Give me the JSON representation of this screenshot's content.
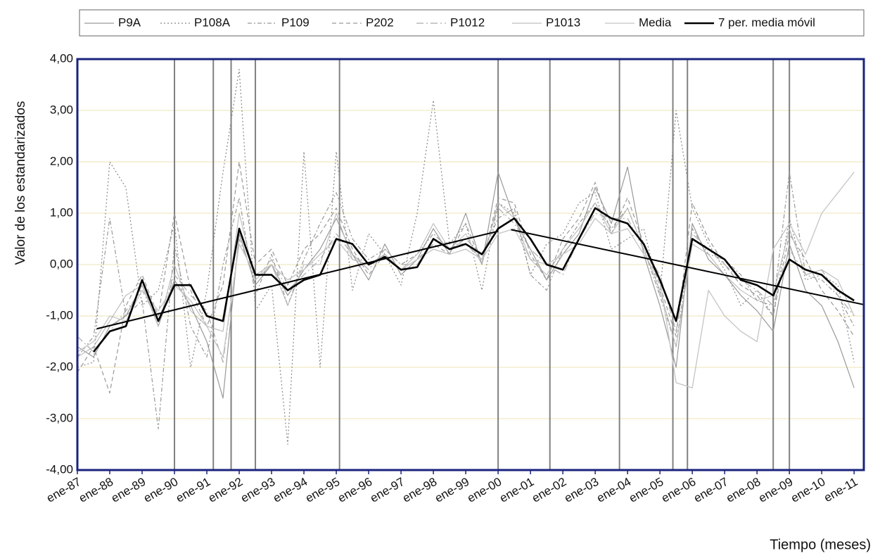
{
  "chart_data": {
    "type": "line",
    "y_label": "Valor de los estandarizados",
    "x_label": "Tiempo  (meses)",
    "x": [
      1987,
      1987.5,
      1988,
      1988.5,
      1989,
      1989.5,
      1990,
      1990.5,
      1991,
      1991.5,
      1992,
      1992.5,
      1993,
      1993.5,
      1994,
      1994.5,
      1995,
      1995.5,
      1996,
      1996.5,
      1997,
      1997.5,
      1998,
      1998.5,
      1999,
      1999.5,
      2000,
      2000.5,
      2001,
      2001.5,
      2002,
      2002.5,
      2003,
      2003.5,
      2004,
      2004.5,
      2005,
      2005.5,
      2006,
      2006.5,
      2007,
      2007.5,
      2008,
      2008.5,
      2009,
      2009.5,
      2010,
      2010.5,
      2011
    ],
    "xlim": [
      1987,
      2011.3
    ],
    "xticks": [
      {
        "value": 1987,
        "label": "ene-87"
      },
      {
        "value": 1988,
        "label": "ene-88"
      },
      {
        "value": 1989,
        "label": "ene-89"
      },
      {
        "value": 1990,
        "label": "ene-90"
      },
      {
        "value": 1991,
        "label": "ene-91"
      },
      {
        "value": 1992,
        "label": "ene-92"
      },
      {
        "value": 1993,
        "label": "ene-93"
      },
      {
        "value": 1994,
        "label": "ene-94"
      },
      {
        "value": 1995,
        "label": "ene-95"
      },
      {
        "value": 1996,
        "label": "ene-96"
      },
      {
        "value": 1997,
        "label": "ene-97"
      },
      {
        "value": 1998,
        "label": "ene-98"
      },
      {
        "value": 1999,
        "label": "ene-99"
      },
      {
        "value": 2000,
        "label": "ene-00"
      },
      {
        "value": 2001,
        "label": "ene-01"
      },
      {
        "value": 2002,
        "label": "ene-02"
      },
      {
        "value": 2003,
        "label": "ene-03"
      },
      {
        "value": 2004,
        "label": "ene-04"
      },
      {
        "value": 2005,
        "label": "ene-05"
      },
      {
        "value": 2006,
        "label": "ene-06"
      },
      {
        "value": 2007,
        "label": "ene-07"
      },
      {
        "value": 2008,
        "label": "ene-08"
      },
      {
        "value": 2009,
        "label": "ene-09"
      },
      {
        "value": 2010,
        "label": "ene-10"
      },
      {
        "value": 2011,
        "label": "ene-11"
      }
    ],
    "ylim": [
      -4,
      4
    ],
    "yticks": [
      {
        "value": -4,
        "label": "-4,00"
      },
      {
        "value": -3,
        "label": "-3,00"
      },
      {
        "value": -2,
        "label": "-2,00"
      },
      {
        "value": -1,
        "label": "-1,00"
      },
      {
        "value": 0,
        "label": "0,00"
      },
      {
        "value": 1,
        "label": "1,00"
      },
      {
        "value": 2,
        "label": "2,00"
      },
      {
        "value": 3,
        "label": "3,00"
      },
      {
        "value": 4,
        "label": "4,00"
      }
    ],
    "grid": true,
    "series": [
      {
        "name": "P9A",
        "color": "#999999",
        "dash": "none",
        "width": 1.2,
        "values": [
          -1.6,
          -1.8,
          -1.2,
          -1.0,
          -0.4,
          -1.2,
          -0.3,
          -0.8,
          -1.5,
          -2.6,
          0.6,
          -0.4,
          0.0,
          -0.6,
          -0.1,
          0.3,
          0.9,
          0.2,
          -0.3,
          0.4,
          -0.2,
          0.1,
          0.7,
          0.2,
          1.0,
          0.0,
          1.8,
          0.9,
          0.3,
          -0.3,
          0.2,
          0.6,
          1.5,
          0.8,
          1.9,
          0.2,
          -0.8,
          -2.0,
          0.8,
          0.1,
          -0.2,
          -0.6,
          -0.9,
          -1.3,
          0.4,
          -0.5,
          -0.8,
          -1.5,
          -2.4
        ]
      },
      {
        "name": "P108A",
        "color": "#888888",
        "dash": "2,3",
        "width": 1.2,
        "values": [
          -2.0,
          -1.9,
          2.0,
          1.5,
          -0.8,
          -0.5,
          0.8,
          -2.0,
          -0.5,
          1.8,
          3.8,
          -0.9,
          -0.4,
          -3.5,
          2.2,
          -2.0,
          2.2,
          -0.5,
          0.6,
          0.2,
          -0.4,
          1.0,
          3.2,
          0.4,
          0.8,
          -0.5,
          1.2,
          1.0,
          -0.2,
          0.4,
          0.6,
          1.2,
          1.4,
          0.3,
          0.5,
          0.7,
          -0.6,
          3.0,
          1.1,
          0.4,
          -0.1,
          -0.8,
          -0.5,
          -1.0,
          0.9,
          -0.3,
          -0.2,
          -0.4,
          -1.9
        ]
      },
      {
        "name": "P109",
        "color": "#999999",
        "dash": "6,3,2,3",
        "width": 1.2,
        "values": [
          -1.8,
          -1.4,
          0.9,
          -1.0,
          -0.7,
          -3.2,
          0.4,
          -1.2,
          -1.8,
          0.0,
          1.3,
          -0.6,
          0.2,
          -0.8,
          0.1,
          0.8,
          1.4,
          0.5,
          0.1,
          0.3,
          0.0,
          0.2,
          0.6,
          0.3,
          0.5,
          0.2,
          0.9,
          1.1,
          -0.2,
          -0.5,
          0.3,
          0.8,
          1.2,
          0.7,
          1.1,
          0.3,
          -0.6,
          -1.6,
          0.7,
          0.2,
          0.1,
          -0.2,
          -0.7,
          -0.8,
          1.8,
          -0.2,
          -0.3,
          -0.6,
          -1.2
        ]
      },
      {
        "name": "P202",
        "color": "#999999",
        "dash": "6,4",
        "width": 1.2,
        "values": [
          -2.1,
          -1.6,
          -2.5,
          -0.8,
          -0.2,
          -1.0,
          1.0,
          -0.5,
          -1.2,
          -0.4,
          2.0,
          0.0,
          0.3,
          -0.4,
          0.3,
          0.6,
          1.1,
          0.3,
          -0.2,
          0.2,
          -0.1,
          0.1,
          0.4,
          0.2,
          0.8,
          0.0,
          1.3,
          1.2,
          0.2,
          -0.3,
          0.5,
          0.9,
          1.6,
          0.6,
          1.3,
          0.4,
          -0.4,
          -1.4,
          1.2,
          0.5,
          0.0,
          -0.4,
          -0.6,
          -1.0,
          0.6,
          0.1,
          -0.5,
          -0.9,
          -1.4
        ]
      },
      {
        "name": "P1012",
        "color": "#aaaaaa",
        "dash": "10,4,2,4",
        "width": 1.2,
        "values": [
          -1.4,
          -1.7,
          -1.3,
          -0.9,
          -0.5,
          -1.1,
          -0.2,
          -0.6,
          -0.9,
          -1.9,
          0.5,
          -0.3,
          0.1,
          -0.5,
          -0.2,
          0.1,
          0.6,
          0.2,
          -0.1,
          0.3,
          0.0,
          0.0,
          0.5,
          0.4,
          0.4,
          0.1,
          1.1,
          0.8,
          0.3,
          0.0,
          -0.2,
          0.5,
          1.0,
          0.9,
          0.9,
          0.3,
          -0.2,
          -1.3,
          0.6,
          0.3,
          0.0,
          -0.3,
          -0.5,
          -0.8,
          0.3,
          -0.2,
          -0.1,
          -0.6,
          -1.0
        ]
      },
      {
        "name": "P1013",
        "color": "#c8c8c8",
        "dash": "none",
        "width": 1.4,
        "values": [
          -1.7,
          -1.5,
          -1.0,
          -1.1,
          -0.5,
          -0.9,
          -0.4,
          -0.7,
          -1.2,
          -1.8,
          0.4,
          -0.2,
          0.0,
          -0.3,
          -0.1,
          0.2,
          0.5,
          0.1,
          0.0,
          0.2,
          -0.1,
          0.1,
          0.3,
          0.2,
          0.3,
          0.1,
          0.6,
          0.7,
          0.1,
          0.0,
          0.2,
          0.4,
          0.9,
          0.6,
          0.7,
          0.2,
          -0.3,
          -2.3,
          -2.4,
          -0.5,
          -1.0,
          -1.3,
          -1.5,
          0.3,
          0.8,
          0.2,
          1.0,
          1.4,
          1.8
        ]
      },
      {
        "name": "Media",
        "color": "#b5b5b5",
        "dash": "none",
        "width": 1,
        "values": [
          -1.8,
          -1.6,
          -1.1,
          -0.6,
          -0.4,
          -1.2,
          0.0,
          -0.9,
          -1.2,
          -1.3,
          1.0,
          -0.3,
          0.0,
          -0.8,
          0.0,
          0.0,
          1.0,
          0.1,
          0.0,
          0.2,
          -0.1,
          0.2,
          0.8,
          0.3,
          0.6,
          0.0,
          1.2,
          0.9,
          0.1,
          -0.2,
          0.3,
          0.7,
          1.2,
          0.6,
          1.1,
          0.3,
          -0.5,
          -1.6,
          0.4,
          0.2,
          -0.2,
          -0.5,
          -0.7,
          -0.6,
          0.7,
          -0.2,
          -0.1,
          -0.3,
          -1.0
        ]
      },
      {
        "name": "7 per. media móvil",
        "color": "#000000",
        "dash": "none",
        "width": 2.6,
        "values": [
          null,
          -1.7,
          -1.3,
          -1.2,
          -0.3,
          -1.1,
          -0.4,
          -0.4,
          -1.0,
          -1.1,
          0.7,
          -0.2,
          -0.2,
          -0.5,
          -0.3,
          -0.2,
          0.5,
          0.4,
          0.0,
          0.15,
          -0.1,
          -0.05,
          0.5,
          0.3,
          0.4,
          0.2,
          0.7,
          0.9,
          0.5,
          0.0,
          -0.1,
          0.5,
          1.1,
          0.9,
          0.8,
          0.4,
          -0.3,
          -1.1,
          0.5,
          0.3,
          0.1,
          -0.3,
          -0.4,
          -0.6,
          0.1,
          -0.1,
          -0.2,
          -0.5,
          -0.7
        ]
      }
    ],
    "breaks": [
      1990.0,
      1991.2,
      1991.75,
      1992.5,
      1995.1,
      2000.0,
      2001.6,
      2003.75,
      2005.4,
      2005.85,
      2008.5,
      2009.0
    ],
    "break_color": "#808080",
    "trend_lines": [
      {
        "color": "#000000",
        "x": [
          1987.6,
          2000.0
        ],
        "values": [
          -1.25,
          0.65
        ]
      },
      {
        "color": "#000000",
        "x": [
          2000.4,
          2011.3
        ],
        "values": [
          0.68,
          -0.78
        ]
      }
    ]
  }
}
